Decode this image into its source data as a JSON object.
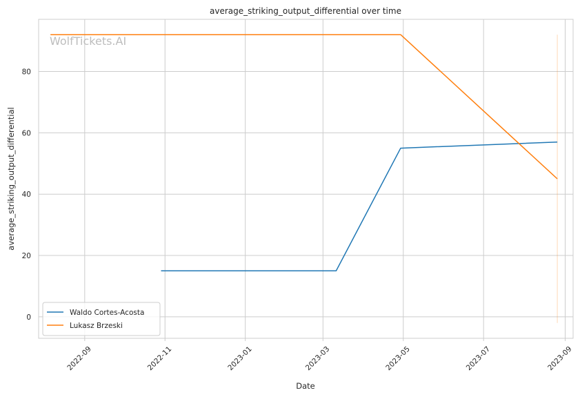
{
  "chart_data": {
    "type": "line",
    "title": "average_striking_output_differential over time",
    "xlabel": "Date",
    "ylabel": "average_striking_output_differential",
    "x_ticks": [
      "2022-09-01",
      "2022-11-01",
      "2023-01-01",
      "2023-03-01",
      "2023-05-01",
      "2023-07-01",
      "2023-09-01"
    ],
    "x_tick_labels": [
      "2022-09",
      "2022-11",
      "2023-01",
      "2023-03",
      "2023-05",
      "2023-07",
      "2023-09"
    ],
    "xlim": [
      "2022-07-28",
      "2023-09-07"
    ],
    "y_ticks": [
      0,
      20,
      40,
      60,
      80
    ],
    "ylim": [
      -7,
      97
    ],
    "grid": true,
    "legend_position": "lower-left",
    "watermark": "WolfTickets.AI",
    "series": [
      {
        "name": "Waldo Cortes-Acosta",
        "color": "#1f77b4",
        "points": [
          {
            "x": "2022-10-29",
            "y": 15
          },
          {
            "x": "2023-03-11",
            "y": 15
          },
          {
            "x": "2023-04-29",
            "y": 55
          },
          {
            "x": "2023-08-26",
            "y": 57
          }
        ]
      },
      {
        "name": "Lukasz Brzeski",
        "color": "#ff7f0e",
        "points": [
          {
            "x": "2022-08-06",
            "y": 92
          },
          {
            "x": "2023-04-29",
            "y": 92
          },
          {
            "x": "2023-08-26",
            "y": 45
          }
        ]
      }
    ],
    "annotations": [
      {
        "type": "vertical-line",
        "x": "2023-08-26",
        "y_from": -2,
        "y_to": 92,
        "color": "#ff7f0e"
      }
    ]
  }
}
